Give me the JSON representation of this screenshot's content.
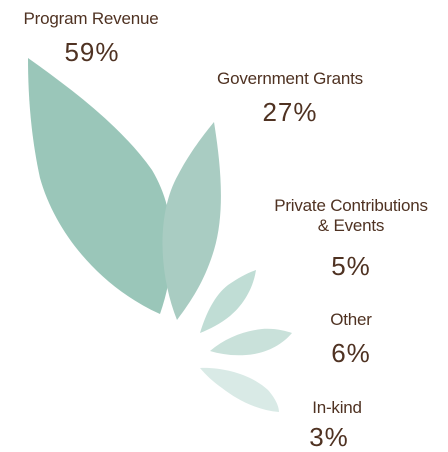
{
  "chart_data": {
    "type": "pie",
    "categories": [
      "Program Revenue",
      "Government Grants",
      "Private Contributions\n& Events",
      "Other",
      "In-kind"
    ],
    "values": [
      59,
      27,
      5,
      6,
      3
    ],
    "value_labels": [
      "59%",
      "27%",
      "5%",
      "6%",
      "3%"
    ],
    "unit": "%",
    "colors": [
      "#9ac6b9",
      "#a9ccc2",
      "#c0ddd5",
      "#c9e1da",
      "#d9eae6"
    ]
  },
  "text_color": "#4f3222"
}
